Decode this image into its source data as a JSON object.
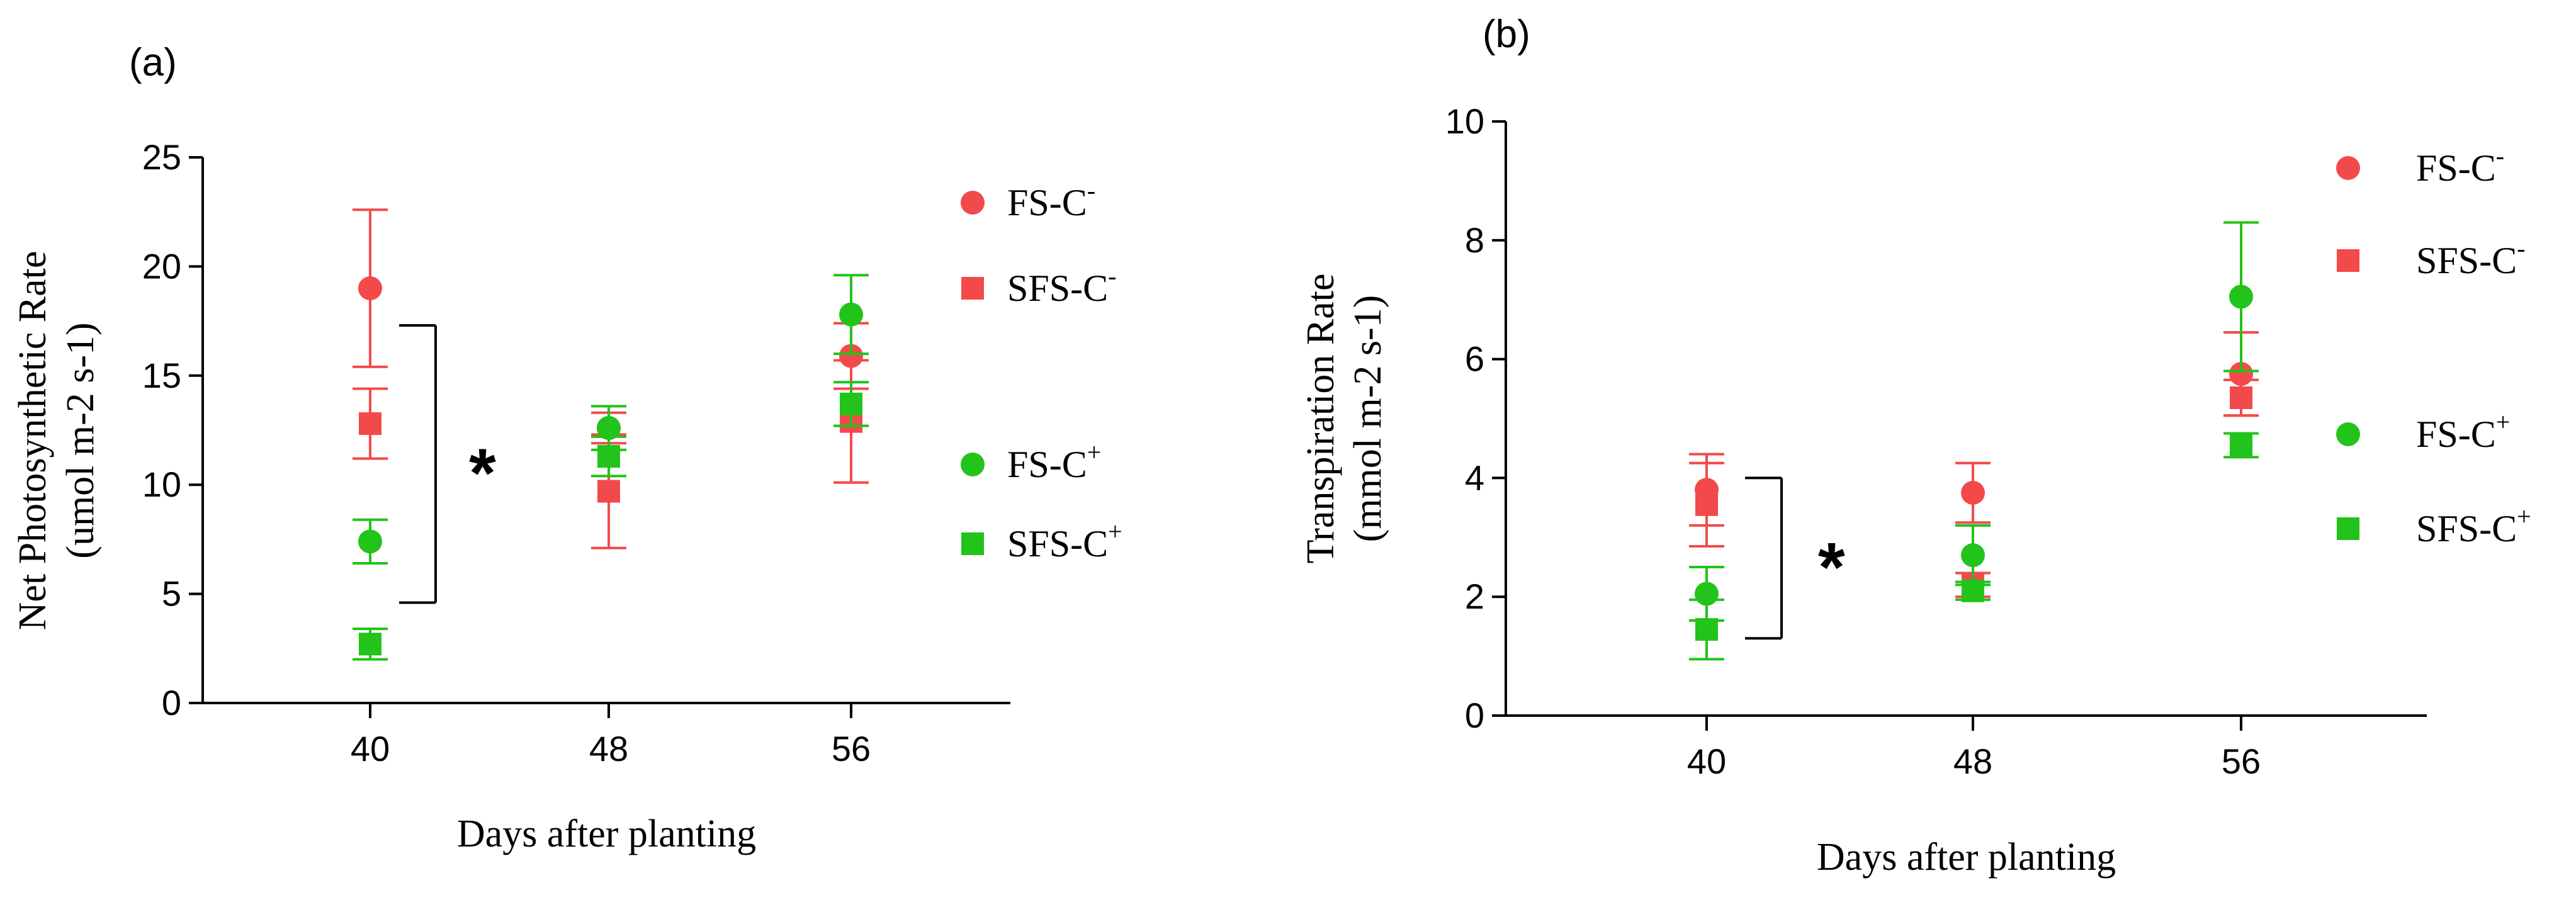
{
  "colors": {
    "red": "#f24a4a",
    "green": "#22c31a",
    "axis": "#000000"
  },
  "chart_data": [
    {
      "type": "scatter",
      "panel_label": "(a)",
      "title": "",
      "xlabel": "Days after planting",
      "ylabel_line1": "Net Photosynthetic Rate",
      "ylabel_line2": "(umol m-2 s-1)",
      "categories": [
        "40",
        "48",
        "56"
      ],
      "ylim": [
        0,
        25
      ],
      "yticks": [
        0,
        5,
        10,
        15,
        20,
        25
      ],
      "series": [
        {
          "name": "FS-C-",
          "legend_base": "FS-C",
          "legend_sup": "-",
          "marker": "circle",
          "color": "#f24a4a",
          "values": [
            19.0,
            12.6,
            15.9
          ],
          "errors": [
            3.6,
            0.7,
            1.5
          ]
        },
        {
          "name": "SFS-C-",
          "legend_base": "SFS-C",
          "legend_sup": "-",
          "marker": "square",
          "color": "#f24a4a",
          "values": [
            12.8,
            9.7,
            12.9
          ],
          "errors": [
            1.6,
            2.6,
            2.8
          ]
        },
        {
          "name": "FS-C+",
          "legend_base": "FS-C",
          "legend_sup": "+",
          "marker": "circle",
          "color": "#22c31a",
          "values": [
            7.4,
            12.6,
            17.8
          ],
          "errors": [
            1.0,
            1.0,
            1.8
          ]
        },
        {
          "name": "SFS-C+",
          "legend_base": "SFS-C",
          "legend_sup": "+",
          "marker": "square",
          "color": "#22c31a",
          "values": [
            2.7,
            11.3,
            13.7
          ],
          "errors": [
            0.7,
            0.9,
            1.0
          ]
        }
      ],
      "annotations": [
        {
          "text": "*",
          "category": "40",
          "y_from": 4.6,
          "y_to": 17.3
        }
      ]
    },
    {
      "type": "scatter",
      "panel_label": "(b)",
      "title": "",
      "xlabel": "Days after planting",
      "ylabel_line1": "Transpiration Rate",
      "ylabel_line2": "(mmol m-2 s-1)",
      "categories": [
        "40",
        "48",
        "56"
      ],
      "ylim": [
        0,
        10
      ],
      "yticks": [
        0,
        2,
        4,
        6,
        8,
        10
      ],
      "series": [
        {
          "name": "FS-C-",
          "legend_base": "FS-C",
          "legend_sup": "-",
          "marker": "circle",
          "color": "#f24a4a",
          "values": [
            3.8,
            3.75,
            5.75
          ],
          "errors": [
            0.6,
            0.5,
            0.7
          ]
        },
        {
          "name": "SFS-C-",
          "legend_base": "SFS-C",
          "legend_sup": "-",
          "marker": "square",
          "color": "#f24a4a",
          "values": [
            3.55,
            2.2,
            5.35
          ],
          "errors": [
            0.7,
            0.2,
            0.3
          ]
        },
        {
          "name": "FS-C+",
          "legend_base": "FS-C",
          "legend_sup": "+",
          "marker": "circle",
          "color": "#22c31a",
          "values": [
            2.05,
            2.7,
            7.05
          ],
          "errors": [
            0.45,
            0.5,
            1.25
          ]
        },
        {
          "name": "SFS-C+",
          "legend_base": "SFS-C",
          "legend_sup": "+",
          "marker": "square",
          "color": "#22c31a",
          "values": [
            1.45,
            2.1,
            4.55
          ],
          "errors": [
            0.5,
            0.15,
            0.2
          ]
        }
      ],
      "annotations": [
        {
          "text": "*",
          "category": "40",
          "y_from": 1.3,
          "y_to": 4.0
        }
      ]
    }
  ]
}
